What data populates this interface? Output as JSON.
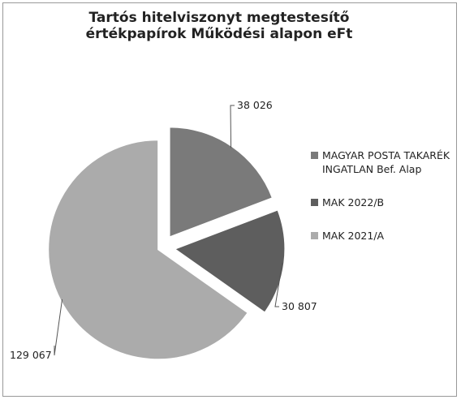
{
  "chart_data": {
    "type": "pie",
    "title": "Tartós hitelviszonyt megtestesítő értékpapírok Működési alapon eFt",
    "categories": [
      "MAGYAR POSTA TAKARÉK INGATLAN Bef. Alap",
      "MAK 2022/B",
      "MAK 2021/A"
    ],
    "values": [
      38026,
      30807,
      129067
    ],
    "value_labels": [
      "38 026",
      "30 807",
      "129 067"
    ],
    "colors": [
      "#7a7a7a",
      "#5e5e5e",
      "#ababab"
    ],
    "legend": "right"
  }
}
